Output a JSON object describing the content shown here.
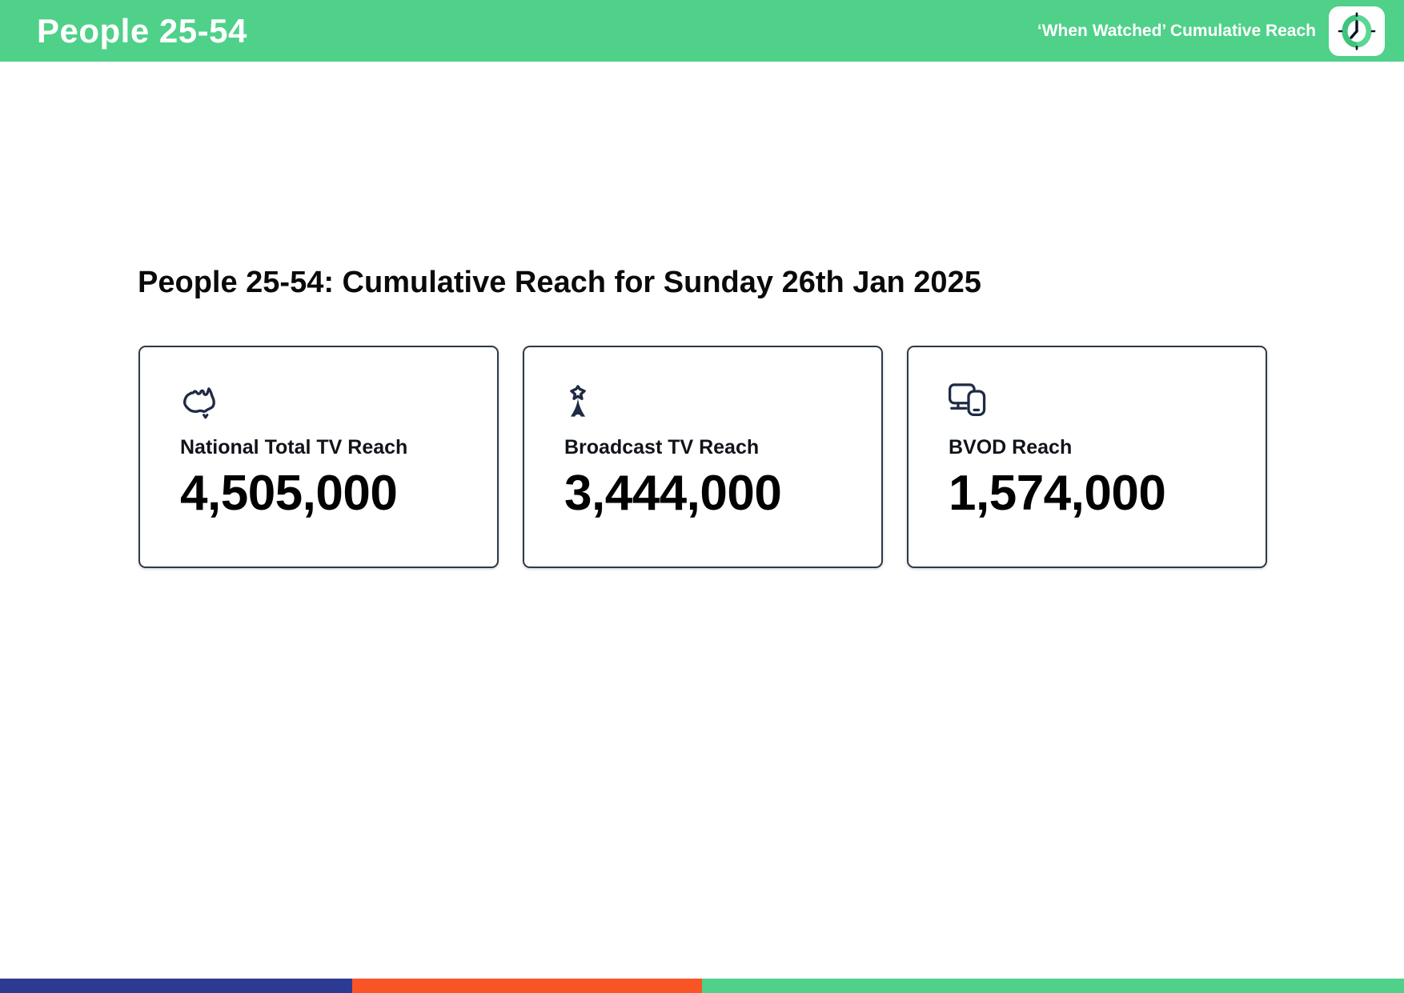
{
  "header": {
    "title": "People 25-54",
    "right_label": "‘When Watched’ Cumulative Reach",
    "clock_icon": "clock-icon"
  },
  "main": {
    "heading": "People 25-54: Cumulative Reach for Sunday 26th Jan 2025",
    "cards": [
      {
        "icon": "australia-map-icon",
        "label": "National Total TV Reach",
        "value": "4,505,000"
      },
      {
        "icon": "broadcast-tower-icon",
        "label": "Broadcast TV Reach",
        "value": "3,444,000"
      },
      {
        "icon": "devices-icon",
        "label": "BVOD Reach",
        "value": "1,574,000"
      }
    ]
  },
  "footer": {
    "segments": [
      {
        "name": "blue",
        "color": "#2D3A92",
        "width_pct": 25.1
      },
      {
        "name": "orange",
        "color": "#F95426",
        "width_pct": 24.9
      },
      {
        "name": "green",
        "color": "#4FD189",
        "width_pct": 50.0
      }
    ]
  },
  "colors": {
    "header_green": "#4FD189",
    "icon_navy": "#1F2A44",
    "card_border": "#2E3A47",
    "footer_blue": "#2D3A92",
    "footer_orange": "#F95426",
    "footer_green": "#4FD189"
  }
}
